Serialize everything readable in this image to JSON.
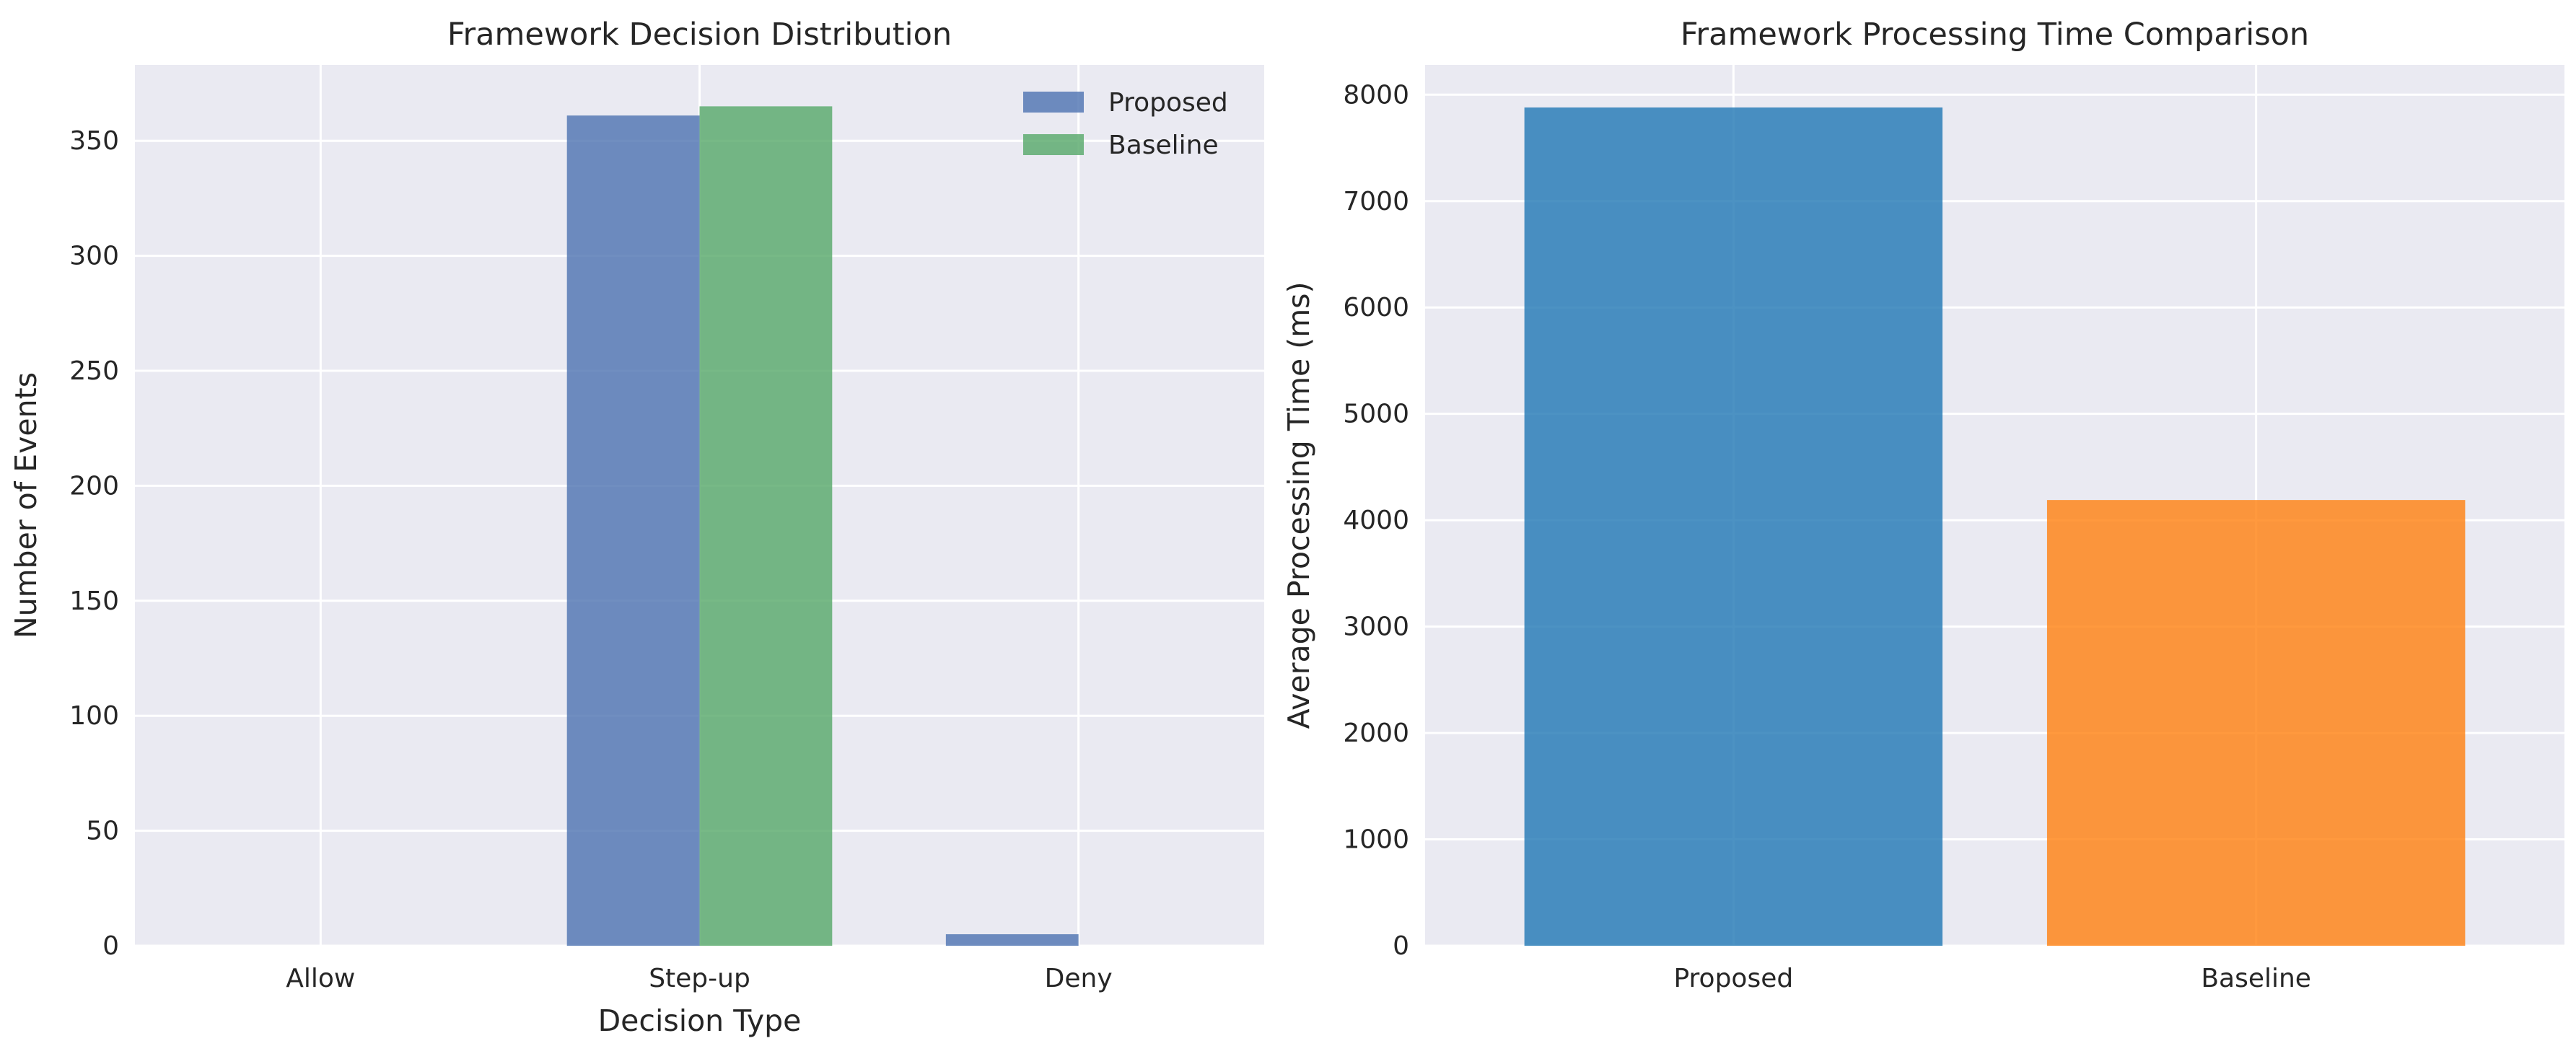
{
  "colors": {
    "plot_background": "#EAEAF2",
    "grid": "#FFFFFF",
    "text": "#262626",
    "proposed_blue": "#4C72B0",
    "baseline_green": "#55A868",
    "bar_blue": "#1F77B4",
    "bar_orange": "#FF7F0E"
  },
  "chart_data": [
    {
      "type": "bar",
      "title": "Framework Decision Distribution",
      "xlabel": "Decision Type",
      "ylabel": "Number of Events",
      "categories": [
        "Allow",
        "Step-up",
        "Deny"
      ],
      "series": [
        {
          "name": "Proposed",
          "values": [
            0,
            361,
            5
          ]
        },
        {
          "name": "Baseline",
          "values": [
            0,
            365,
            0
          ]
        }
      ],
      "ylim": [
        0,
        383
      ],
      "yticks": [
        0,
        50,
        100,
        150,
        200,
        250,
        300,
        350
      ],
      "grid": true,
      "legend": "top-right"
    },
    {
      "type": "bar",
      "title": "Framework Processing Time Comparison",
      "xlabel": "",
      "ylabel": "Average Processing Time (ms)",
      "categories": [
        "Proposed",
        "Baseline"
      ],
      "values": [
        7880,
        4190
      ],
      "ylim": [
        0,
        8280
      ],
      "yticks": [
        0,
        1000,
        2000,
        3000,
        4000,
        5000,
        6000,
        7000,
        8000
      ],
      "grid": true
    }
  ]
}
